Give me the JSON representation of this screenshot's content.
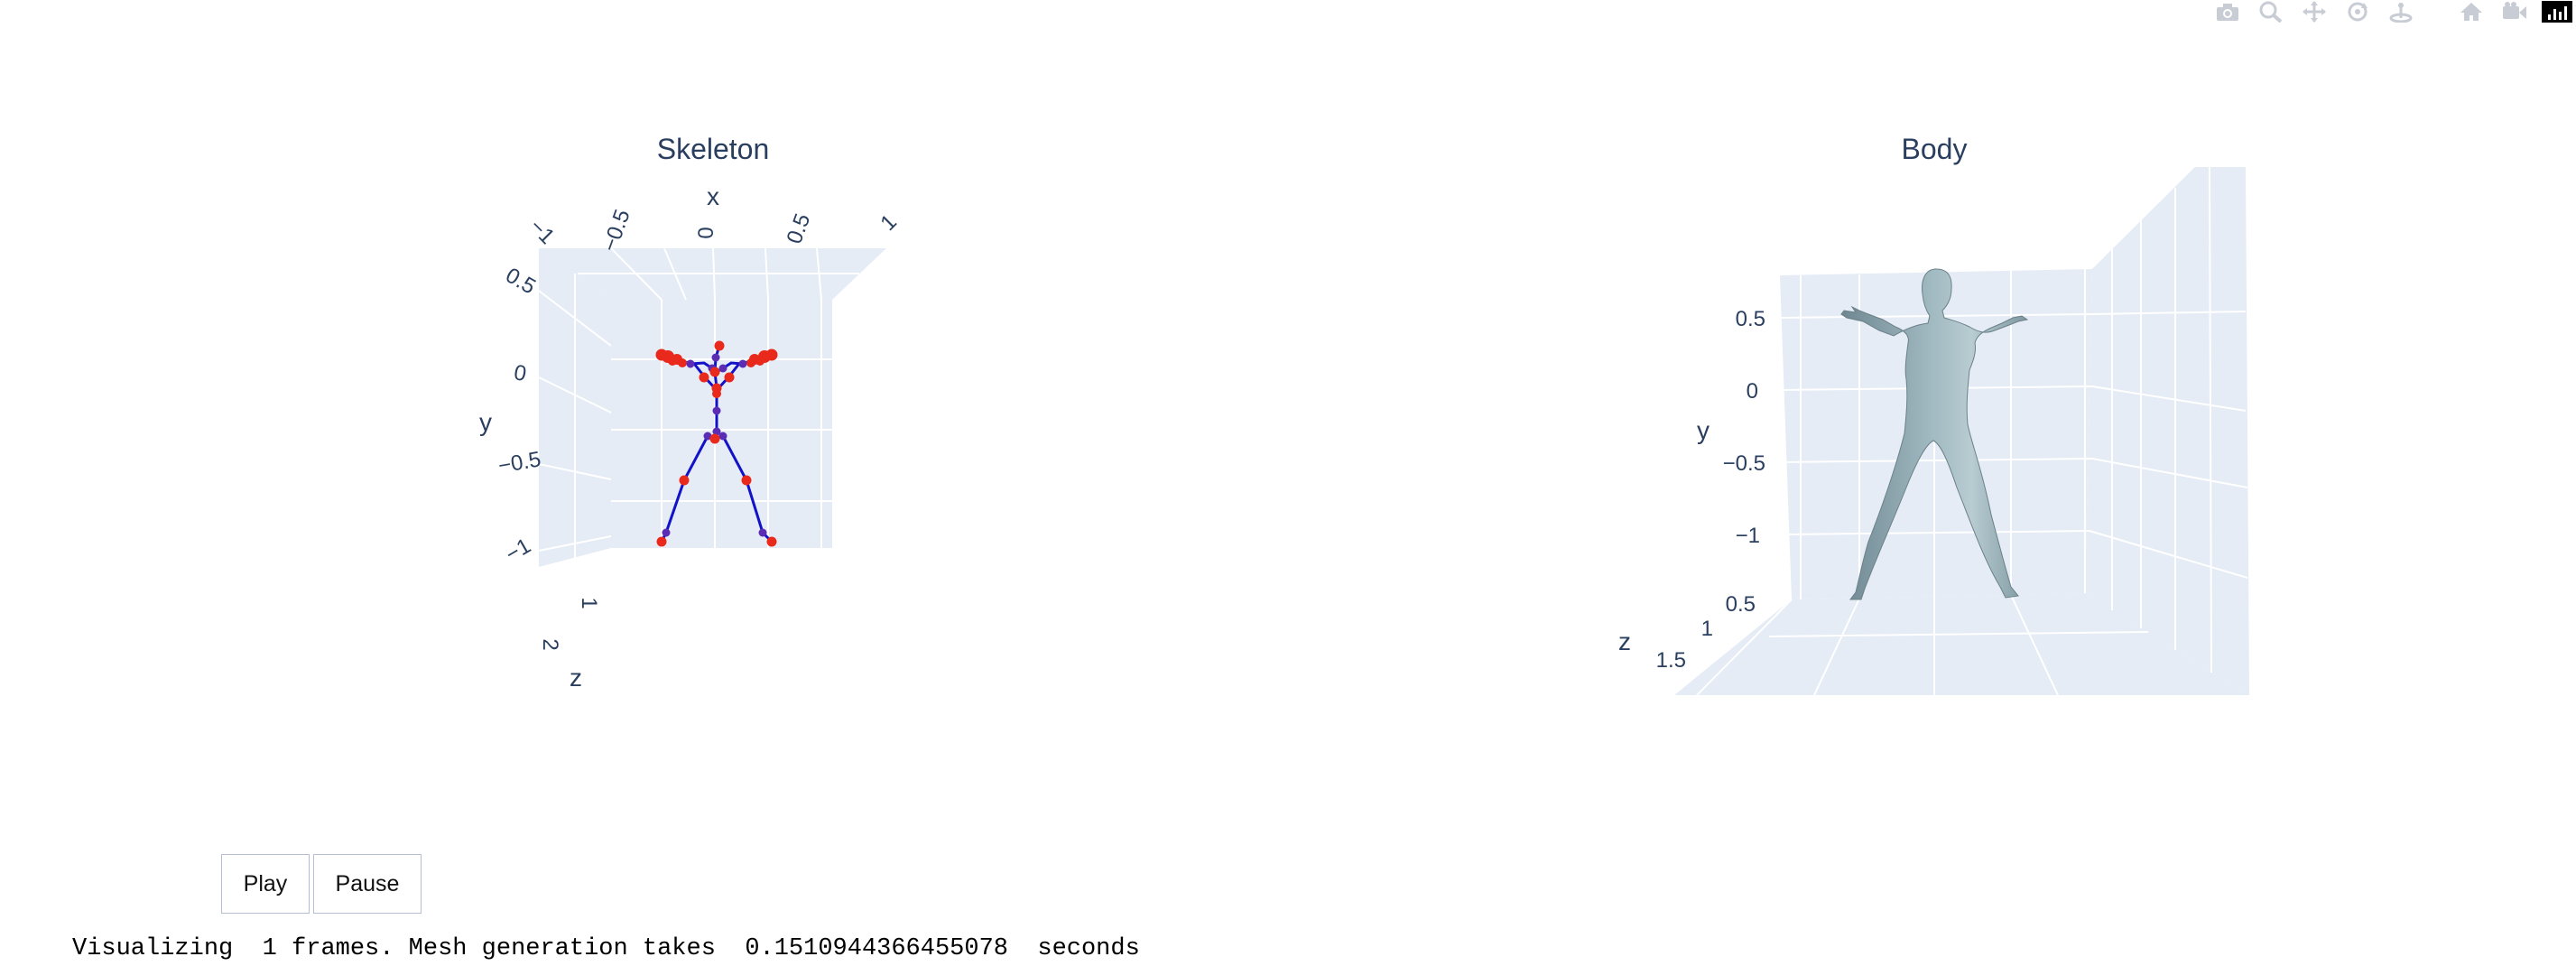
{
  "figure": {
    "modebar": {
      "icons": [
        "camera-icon",
        "zoom-icon",
        "pan-icon",
        "orbit-rotation-icon",
        "turntable-rotation-icon",
        "reset-camera-home-icon",
        "reset-camera-last-save-icon",
        "plotly-logo-icon"
      ]
    },
    "skeleton": {
      "title": "Skeleton",
      "xaxis": {
        "label": "x",
        "ticks": [
          "−1",
          "−0.5",
          "0",
          "0.5",
          "1"
        ]
      },
      "yaxis": {
        "label": "y",
        "ticks": [
          "0.5",
          "0",
          "−0.5",
          "−1"
        ]
      },
      "zaxis": {
        "label": "z",
        "ticks": [
          "1",
          "2"
        ]
      },
      "joint_color": "#e8291c",
      "bone_color": "#1212c8",
      "bone_joint_color": "#5b2db5"
    },
    "body": {
      "title": "Body",
      "yaxis": {
        "label": "y",
        "ticks": [
          "0.5",
          "0",
          "−0.5",
          "−1"
        ]
      },
      "zaxis": {
        "label": "z",
        "ticks": [
          "0.5",
          "1",
          "1.5"
        ]
      },
      "mesh_color": "#8fa9b2",
      "scene_bg": "#e5ecf6"
    }
  },
  "controls": {
    "play_label": "Play",
    "pause_label": "Pause"
  },
  "status": {
    "text": "Visualizing  1 frames. Mesh generation takes  0.1510944366455078  seconds"
  }
}
